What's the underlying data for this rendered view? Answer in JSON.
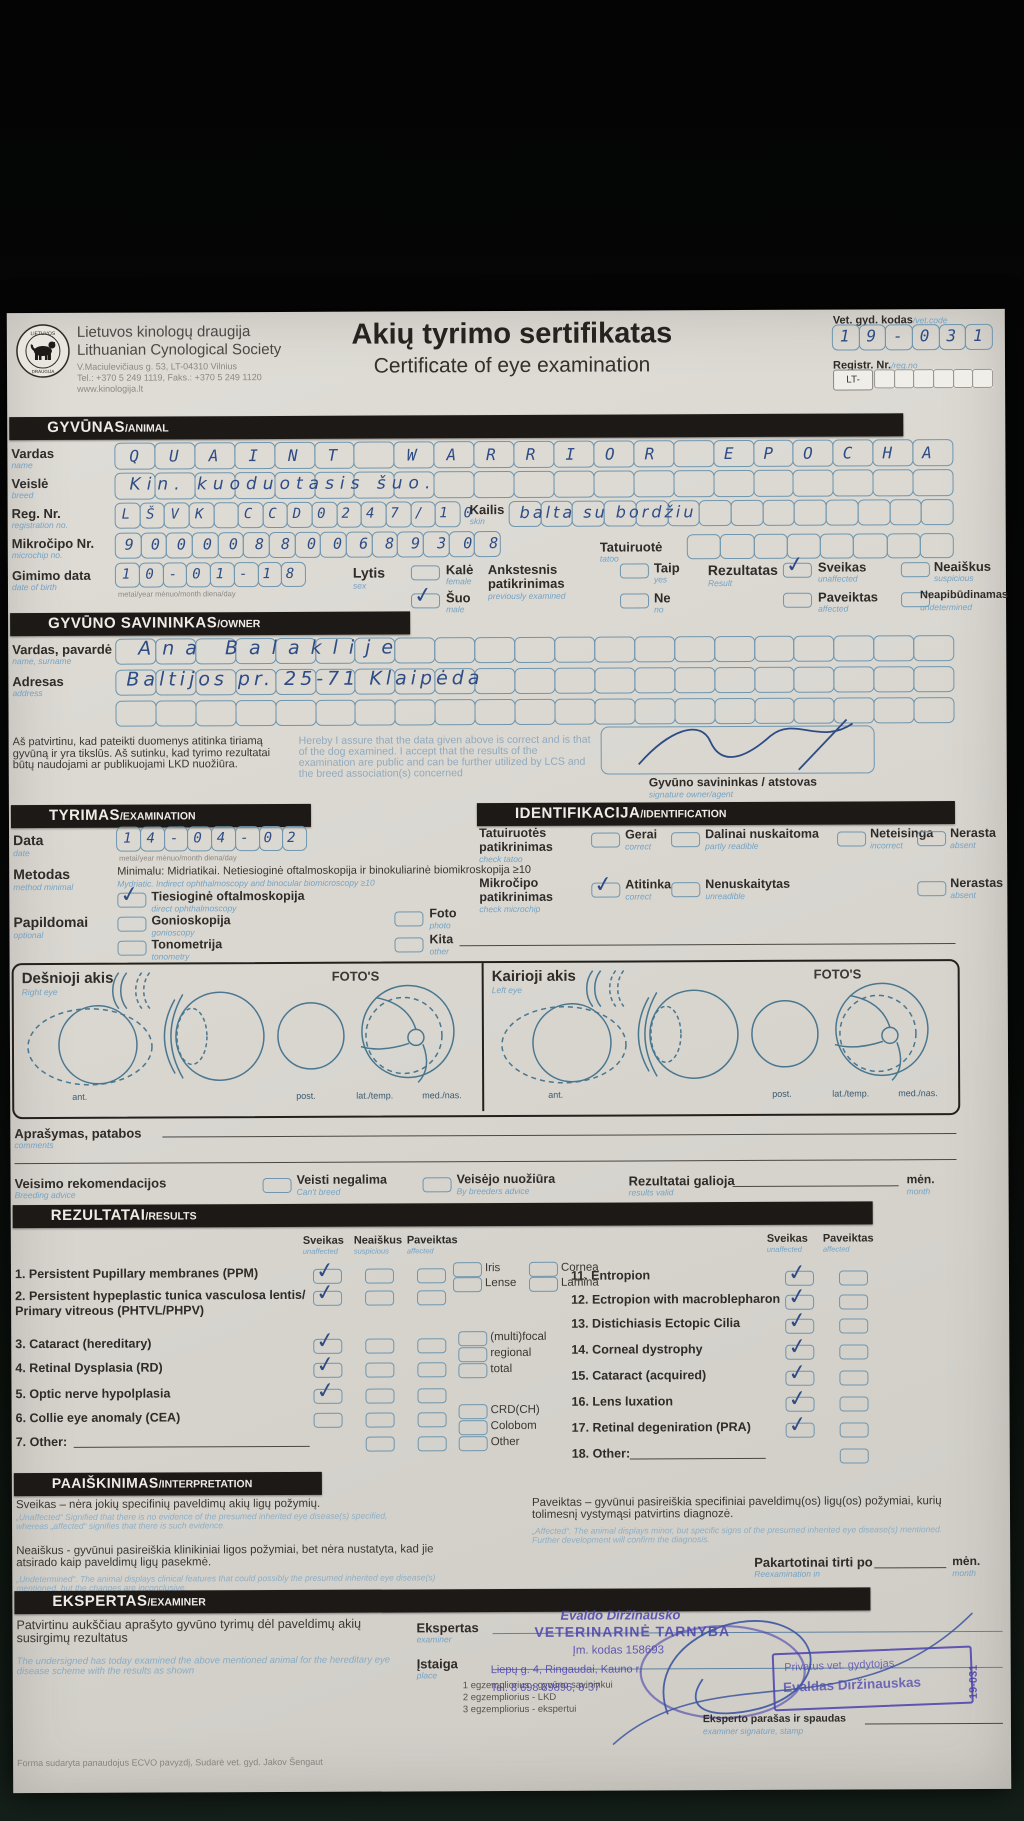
{
  "header": {
    "org_lt": "Lietuvos kinologų draugija",
    "org_en": "Lithuanian Cynological Society",
    "addr1": "V.Maciulevičiaus g. 53, LT-04310 Vilnius",
    "addr2": "Tel.: +370 5 249 1119, Faks.: +370 5 249 1120",
    "addr3": "www.kinologija.lt",
    "title_lt": "Akių tyrimo sertifikatas",
    "title_en": "Certificate of eye examination",
    "vet_code_label": "Vet. gyd. kodas",
    "vet_code_sub": "/vet.code",
    "vet_code_value": "19-031",
    "reg_label": "Registr. Nr.",
    "reg_sub": "/reg.no",
    "reg_prefix": "LT-"
  },
  "animal": {
    "bar_lt": "GYVŪNAS",
    "bar_en": "/ANIMAL",
    "vardas": {
      "lt": "Vardas",
      "en": "name",
      "value": "QUAINT WARRIOR EPOCHA"
    },
    "veisle": {
      "lt": "Veislė",
      "en": "breed",
      "value": "Kin. kuoduotasis šuo."
    },
    "reg": {
      "lt": "Reg. Nr.",
      "en": "registration no.",
      "value": "LŠVK CCD0247/10"
    },
    "kailis": {
      "lt": "Kailis",
      "en": "skin",
      "value": "balta su bordžiu"
    },
    "mikrocipas": {
      "lt": "Mikročipo Nr.",
      "en": "microchip no.",
      "value": "900008800689308"
    },
    "tatuiruote": {
      "lt": "Tatuiruotė",
      "en": "tatoo"
    },
    "gimimo": {
      "lt": "Gimimo data",
      "en": "date of birth",
      "value": "10-01-18",
      "subs": "metai/year  mėnuo/month  diena/day"
    },
    "lytis": {
      "lt": "Lytis",
      "en": "sex",
      "kale": "Kalė",
      "kale_en": "female",
      "suo": "Šuo",
      "suo_en": "male"
    },
    "ankstesnis": {
      "lt1": "Ankstesnis",
      "lt2": "patikrinimas",
      "en": "previously examined",
      "taip": "Taip",
      "taip_en": "yes",
      "ne": "Ne",
      "ne_en": "no"
    },
    "rezultatas": {
      "lt": "Rezultatas",
      "en": "Result",
      "o1": "Sveikas",
      "o1_en": "unaffected",
      "o2": "Neaiškus",
      "o2_en": "suspicious",
      "o3": "Paveiktas",
      "o3_en": "affected",
      "o4": "Neapibūdinamas",
      "o4_en": "undetermined"
    }
  },
  "owner": {
    "bar_lt": "GYVŪNO SAVININKAS",
    "bar_en": "/OWNER",
    "name": {
      "lt": "Vardas, pavardė",
      "en": "name, surname",
      "value": "Ana Balaklije"
    },
    "address": {
      "lt": "Adresas",
      "en": "address",
      "value": "Baltijos pr. 25-71  Klaipėda"
    },
    "decl_lt": "Aš patvirtinu, kad pateikti duomenys atitinka tiriamą gyvūną ir yra tikslūs. Aš sutinku, kad tyrimo rezultatai būtų naudojami ar publikuojami LKD nuožiūra.",
    "decl_en": "Hereby I assure that the data given above is correct and is that of the dog examined. I accept that the results of the examination are public and can be further utilized by LCS and the breed association(s) concerned",
    "sig_lt": "Gyvūno savininkas / atstovas",
    "sig_en": "signature owner/agent"
  },
  "exam": {
    "bar_lt": "TYRIMAS",
    "bar_en": "/EXAMINATION",
    "data": {
      "lt": "Data",
      "en": "date",
      "value": "14-04-02",
      "subs": "metai/year  mėnuo/month  diena/day"
    },
    "metodas": {
      "lt": "Metodas",
      "en": "method minimal",
      "line_lt": "Minimalu: Midriatikai. Netiesioginė oftalmoskopija ir binokuliarinė biomikroskopija ≥10",
      "line_en": "Mydriatic. Indirect ophthalmoscopy and binocular biomicroscopy ≥10"
    },
    "tiesiogine": {
      "lt": "Tiesioginė oftalmoskopija",
      "en": "direct ophthalmoscopy"
    },
    "papildomai": {
      "lt": "Papildomai",
      "en": "optional"
    },
    "gonio": {
      "lt": "Gonioskopija",
      "en": "gonioscopy"
    },
    "tono": {
      "lt": "Tonometrija",
      "en": "tonometry"
    },
    "foto": {
      "lt": "Foto",
      "en": "photo"
    },
    "kita": {
      "lt": "Kita",
      "en": "other"
    }
  },
  "ident": {
    "bar_lt": "IDENTIFIKACIJA",
    "bar_en": "/IDENTIFICATION",
    "tat": {
      "lt1": "Tatuiruotės",
      "lt2": "patikrinimas",
      "en": "check tatoo",
      "o1": "Gerai",
      "o1_en": "correct",
      "o2": "Dalinai nuskaitoma",
      "o2_en": "partly readible",
      "o3": "Neteisinga",
      "o3_en": "incorrect",
      "o4": "Nerasta",
      "o4_en": "absent"
    },
    "chip": {
      "lt1": "Mikročipo",
      "lt2": "patikrinimas",
      "en": "check microchip",
      "o1": "Atitinka",
      "o1_en": "correct",
      "o2": "Nenuskaitytas",
      "o2_en": "unreadible",
      "o3": "Nerastas",
      "o3_en": "absent"
    }
  },
  "eyes": {
    "right_lt": "Dešnioji akis",
    "right_en": "Right eye",
    "left_lt": "Kairioji akis",
    "left_en": "Left eye",
    "fotos": "FOTO'S",
    "ant": "ant.",
    "post": "post.",
    "lat": "lat./temp.",
    "med": "med./nas."
  },
  "comments": {
    "lt": "Aprašymas, patabos",
    "en": "comments"
  },
  "breeding": {
    "lt": "Veisimo rekomendacijos",
    "en": "Breeding advice",
    "cant": "Veisti negalima",
    "cant_en": "Can't breed",
    "advice": "Veisėjo nuožiūra",
    "advice_en": "By breeders advice",
    "valid": "Rezultatai galioja",
    "valid_en": "results valid",
    "men": "mėn.",
    "month": "month"
  },
  "results": {
    "bar_lt": "REZULTATAI",
    "bar_en": "/RESULTS",
    "h1": "Sveikas",
    "h1_en": "unaffected",
    "h2": "Neaiškus",
    "h2_en": "suspicious",
    "h3": "Paveiktas",
    "h3_en": "affected",
    "left": [
      {
        "label": "1. Persistent Pupillary membranes (PPM)"
      },
      {
        "label": "2. Persistent hypeplastic tunica vasculosa lentis/",
        "label2": "Primary vitreous (PHTVL/PHPV)"
      },
      {
        "label": "3. Cataract (hereditary)"
      },
      {
        "label": "4. Retinal Dysplasia  (RD)"
      },
      {
        "label": "5. Optic nerve hypolplasia"
      },
      {
        "label": "6. Collie eye anomaly (CEA)"
      },
      {
        "label": "7. Other:"
      }
    ],
    "branch": {
      "iris": "Iris",
      "lense": "Lense",
      "cornea": "Cornea",
      "lamina": "Lamina",
      "mf": "(multi)focal",
      "reg": "regional",
      "tot": "total",
      "crd": "CRD(CH)",
      "col": "Colobom",
      "oth": "Other"
    },
    "right": [
      "11. Entropion",
      "12. Ectropion with macroblepharon",
      "13. Distichiasis Ectopic Cilia",
      "14. Corneal dystrophy",
      "15. Cataract (acquired)",
      "16. Lens luxation",
      "17. Retinal degeniration (PRA)",
      "18. Other:"
    ]
  },
  "interp": {
    "bar_lt": "PAAIŠKINIMAS",
    "bar_en": "/INTERPRETATION",
    "sveikas_lt": "Sveikas – nėra jokių specifinių paveldimų akių ligų požymių.",
    "sveikas_en": "„Unaffected“ Signified that there is no evidence of the presumed inherited eye disease(s) specified, whereas „affected“ signifies that there is such evidence.",
    "neaiskus_lt": "Neaiškus - gyvūnui pasireiškia klinikiniai ligos požymiai, bet nėra nustatyta, kad jie atsirado kaip paveldimų ligų pasekmė.",
    "neaiskus_en": "„Undetermined“. The animal displays clinical features that could possibly the presumed inherited eye disease(s) mentioned, but the changes are inconclusive.",
    "paveiktas_lt": "Paveiktas – gyvūnui pasireiškia specifiniai paveldimų(os) ligų(os) požymiai, kurių tolimesnį vystymąsi patvirtins diagnozė.",
    "paveiktas_en": "„Affected“. The animal displays minor, but specific signs of the presumed inherited eye disease(s) mentioned. Further development will confirm the diagnosis.",
    "reexam": "Pakartotinai tirti po",
    "reexam_en": "Reexamination in",
    "men": "mėn.",
    "month": "month"
  },
  "examiner": {
    "bar_lt": "EKSPERTAS",
    "bar_en": "/EXAMINER",
    "statement_lt": "Patvirtinu aukščiau aprašyto gyvūno tyrimų dėl paveldimų akių susirgimų rezultatus",
    "statement_en": "The undersigned has today examined the above mentioned animal for the hereditary eye disease scheme with the results as shown",
    "ekspertas": "Ekspertas",
    "ekspertas_en": "examiner",
    "istaiga": "Įstaiga",
    "istaiga_en": "place",
    "copy1": "1 egzempliorius - gyvūno savininkui",
    "copy2": "2 egzempliorius - LKD",
    "copy3": "3 egzempliorius - ekspertui",
    "stamp1_l1": "Evaldo Diržinausko",
    "stamp1_l2": "VETERINARINĖ TARNYBA",
    "stamp1_l3": "Įm. kodas 158693",
    "stamp1_l4": "Liepų g. 4, Ringaudai, Kauno r.",
    "stamp1_l5": "Tel. 8 698 89896, 8-37",
    "stamp2_l1": "Privatus vet. gydytojas",
    "stamp2_l2": "Evaldas Diržinauskas",
    "stamp2_side": "19-031",
    "sig_lt": "Eksperto parašas ir spaudas",
    "sig_en": "examiner signature, stamp",
    "footer": "Forma sudaryta panaudojus ECVO pavyzdį, Sudarė vet. gyd. Jakov Šengaut"
  }
}
